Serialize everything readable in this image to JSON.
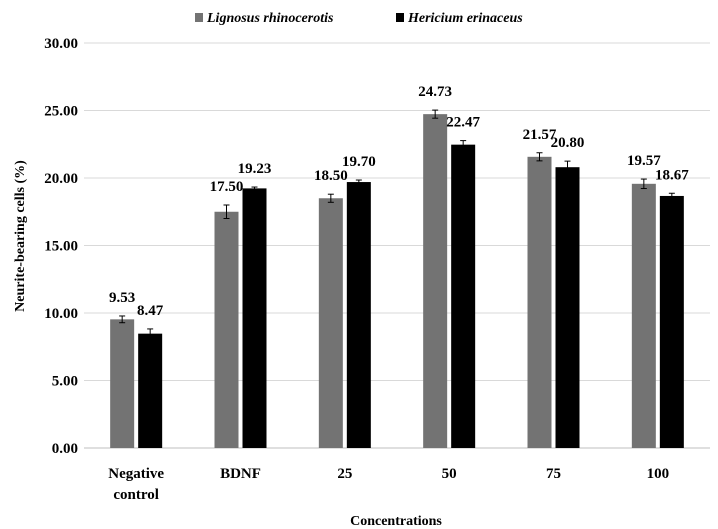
{
  "chart_data": {
    "type": "bar",
    "title": "",
    "categories": [
      [
        "Negative",
        "control"
      ],
      [
        "BDNF"
      ],
      [
        "25"
      ],
      [
        "50"
      ],
      [
        "75"
      ],
      [
        "100"
      ]
    ],
    "series": [
      {
        "name": "Lignosus rhinocerotis",
        "color": "#737373",
        "values": [
          9.53,
          17.5,
          18.5,
          24.73,
          21.57,
          19.57
        ],
        "labels": [
          "9.53",
          "17.50",
          "18.50",
          "24.73",
          "21.57",
          "19.57"
        ],
        "errors": [
          0.25,
          0.5,
          0.3,
          0.3,
          0.3,
          0.35
        ]
      },
      {
        "name": "Hericium erinaceus",
        "color": "#000000",
        "values": [
          8.47,
          19.23,
          19.7,
          22.47,
          20.8,
          18.67
        ],
        "labels": [
          "8.47",
          "19.23",
          "19.70",
          "22.47",
          "20.80",
          "18.67"
        ],
        "errors": [
          0.35,
          0.1,
          0.15,
          0.3,
          0.45,
          0.2
        ]
      }
    ],
    "xlabel": "Concentrations",
    "ylabel": "Neurite-bearing cells (%)",
    "ylim": [
      0,
      30
    ],
    "yticks": [
      0,
      5,
      10,
      15,
      20,
      25,
      30
    ],
    "ytick_labels": [
      "0.00",
      "5.00",
      "10.00",
      "15.00",
      "20.00",
      "25.00",
      "30.00"
    ],
    "legend_position": "top",
    "grid": true
  }
}
